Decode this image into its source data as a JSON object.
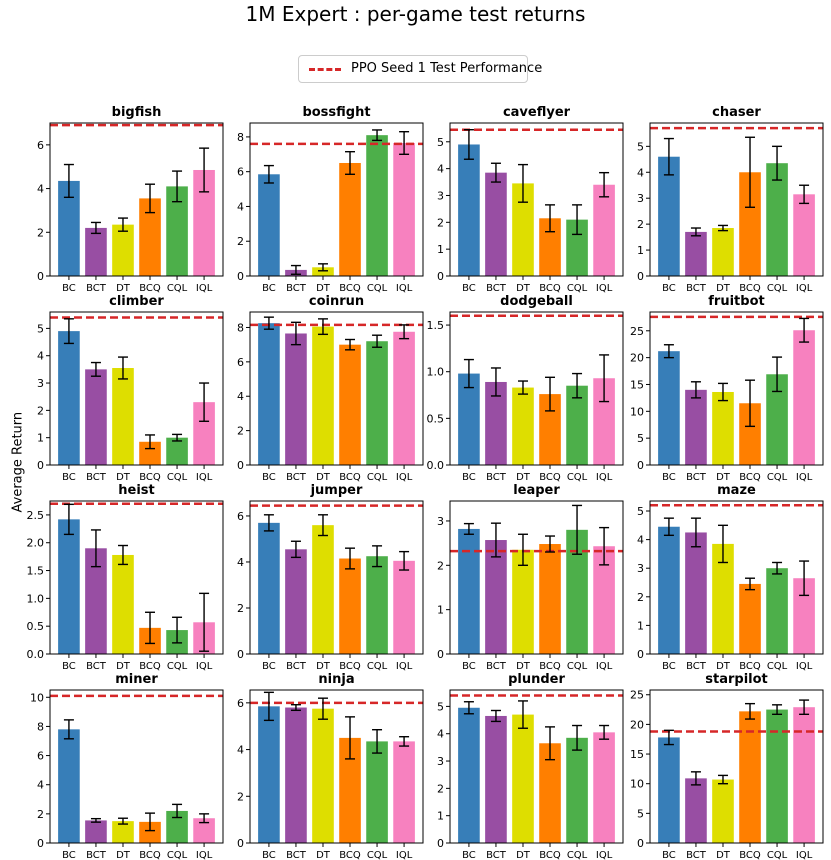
{
  "figure": {
    "title": "1M Expert : per-game test returns",
    "ylabel": "Average Return",
    "legend": "PPO Seed 1 Test Performance",
    "ref_color": "#d62728"
  },
  "chart_data": {
    "type": "bar",
    "categories": [
      "BC",
      "BCT",
      "DT",
      "BCQ",
      "CQL",
      "IQL"
    ],
    "colors": [
      "#377eb8",
      "#984ea3",
      "#dede00",
      "#ff7f00",
      "#4daf4a",
      "#f781bf"
    ],
    "subplots": [
      {
        "title": "bigfish",
        "ylim": [
          0,
          7
        ],
        "yticks": [
          0,
          2,
          4,
          6
        ],
        "ref": 6.9,
        "values": [
          4.35,
          2.2,
          2.35,
          3.55,
          4.1,
          4.85
        ],
        "errors": [
          0.75,
          0.25,
          0.3,
          0.65,
          0.7,
          1.0
        ]
      },
      {
        "title": "bossfight",
        "ylim": [
          0,
          8.8
        ],
        "yticks": [
          0,
          2,
          4,
          6,
          8
        ],
        "ref": 7.6,
        "values": [
          5.85,
          0.35,
          0.5,
          6.5,
          8.1,
          7.65
        ],
        "errors": [
          0.5,
          0.25,
          0.2,
          0.65,
          0.3,
          0.65
        ]
      },
      {
        "title": "caveflyer",
        "ylim": [
          0,
          5.7
        ],
        "yticks": [
          0,
          1,
          2,
          3,
          4,
          5
        ],
        "ref": 5.45,
        "values": [
          4.9,
          3.85,
          3.45,
          2.15,
          2.1,
          3.4
        ],
        "errors": [
          0.55,
          0.35,
          0.7,
          0.5,
          0.55,
          0.45
        ]
      },
      {
        "title": "chaser",
        "ylim": [
          0,
          5.9
        ],
        "yticks": [
          0,
          1,
          2,
          3,
          4,
          5
        ],
        "ref": 5.7,
        "values": [
          4.6,
          1.7,
          1.85,
          4.0,
          4.35,
          3.15
        ],
        "errors": [
          0.7,
          0.15,
          0.1,
          1.35,
          0.65,
          0.35
        ]
      },
      {
        "title": "climber",
        "ylim": [
          0,
          5.6
        ],
        "yticks": [
          0,
          1,
          2,
          3,
          4,
          5
        ],
        "ref": 5.4,
        "values": [
          4.9,
          3.5,
          3.55,
          0.85,
          1.0,
          2.3
        ],
        "errors": [
          0.45,
          0.25,
          0.4,
          0.25,
          0.12,
          0.7
        ]
      },
      {
        "title": "coinrun",
        "ylim": [
          0,
          8.9
        ],
        "yticks": [
          0,
          2,
          4,
          6,
          8
        ],
        "ref": 8.15,
        "values": [
          8.25,
          7.65,
          8.05,
          7.0,
          7.2,
          7.75
        ],
        "errors": [
          0.35,
          0.65,
          0.45,
          0.3,
          0.35,
          0.4
        ]
      },
      {
        "title": "dodgeball",
        "ylim": [
          0,
          1.64
        ],
        "yticks": [
          0.0,
          0.5,
          1.0,
          1.5
        ],
        "ref": 1.6,
        "values": [
          0.98,
          0.89,
          0.83,
          0.76,
          0.85,
          0.93
        ],
        "errors": [
          0.15,
          0.15,
          0.07,
          0.18,
          0.13,
          0.25
        ]
      },
      {
        "title": "fruitbot",
        "ylim": [
          0,
          28.5
        ],
        "yticks": [
          0,
          5,
          10,
          15,
          20,
          25
        ],
        "ref": 27.6,
        "values": [
          21.2,
          14.0,
          13.6,
          11.5,
          16.9,
          25.1
        ],
        "errors": [
          1.2,
          1.5,
          1.6,
          4.3,
          3.2,
          2.2
        ]
      },
      {
        "title": "heist",
        "ylim": [
          0,
          2.75
        ],
        "yticks": [
          0.0,
          0.5,
          1.0,
          1.5,
          2.0,
          2.5
        ],
        "ref": 2.7,
        "values": [
          2.42,
          1.9,
          1.78,
          0.47,
          0.43,
          0.57
        ],
        "errors": [
          0.27,
          0.33,
          0.17,
          0.28,
          0.23,
          0.52
        ]
      },
      {
        "title": "jumper",
        "ylim": [
          0,
          6.65
        ],
        "yticks": [
          0,
          2,
          4,
          6
        ],
        "ref": 6.45,
        "values": [
          5.7,
          4.55,
          5.6,
          4.15,
          4.25,
          4.05
        ],
        "errors": [
          0.35,
          0.35,
          0.45,
          0.45,
          0.45,
          0.4
        ]
      },
      {
        "title": "leaper",
        "ylim": [
          0,
          3.45
        ],
        "yticks": [
          0,
          1,
          2,
          3
        ],
        "ref": 2.32,
        "values": [
          2.82,
          2.57,
          2.35,
          2.48,
          2.8,
          2.43
        ],
        "errors": [
          0.12,
          0.38,
          0.35,
          0.18,
          0.55,
          0.42
        ]
      },
      {
        "title": "maze",
        "ylim": [
          0,
          5.35
        ],
        "yticks": [
          0,
          1,
          2,
          3,
          4,
          5
        ],
        "ref": 5.2,
        "values": [
          4.45,
          4.25,
          3.85,
          2.45,
          3.0,
          2.65
        ],
        "errors": [
          0.3,
          0.5,
          0.65,
          0.2,
          0.2,
          0.6
        ]
      },
      {
        "title": "miner",
        "ylim": [
          0,
          10.5
        ],
        "yticks": [
          0,
          2,
          4,
          6,
          8,
          10
        ],
        "ref": 10.1,
        "values": [
          7.8,
          1.55,
          1.5,
          1.45,
          2.2,
          1.7
        ],
        "errors": [
          0.65,
          0.12,
          0.2,
          0.6,
          0.45,
          0.3
        ]
      },
      {
        "title": "ninja",
        "ylim": [
          0,
          6.55
        ],
        "yticks": [
          0,
          2,
          4,
          6
        ],
        "ref": 6.0,
        "values": [
          5.85,
          5.8,
          5.75,
          4.5,
          4.35,
          4.35
        ],
        "errors": [
          0.6,
          0.12,
          0.45,
          0.9,
          0.5,
          0.2
        ]
      },
      {
        "title": "plunder",
        "ylim": [
          0,
          5.6
        ],
        "yticks": [
          0,
          1,
          2,
          3,
          4,
          5
        ],
        "ref": 5.4,
        "values": [
          4.95,
          4.65,
          4.7,
          3.65,
          3.85,
          4.05
        ],
        "errors": [
          0.22,
          0.2,
          0.5,
          0.6,
          0.45,
          0.25
        ]
      },
      {
        "title": "starpilot",
        "ylim": [
          0,
          25.8
        ],
        "yticks": [
          0,
          5,
          10,
          15,
          20,
          25
        ],
        "ref": 18.8,
        "values": [
          17.8,
          10.9,
          10.7,
          22.2,
          22.5,
          22.9
        ],
        "errors": [
          1.2,
          1.1,
          0.7,
          1.3,
          0.8,
          1.2
        ]
      }
    ]
  }
}
